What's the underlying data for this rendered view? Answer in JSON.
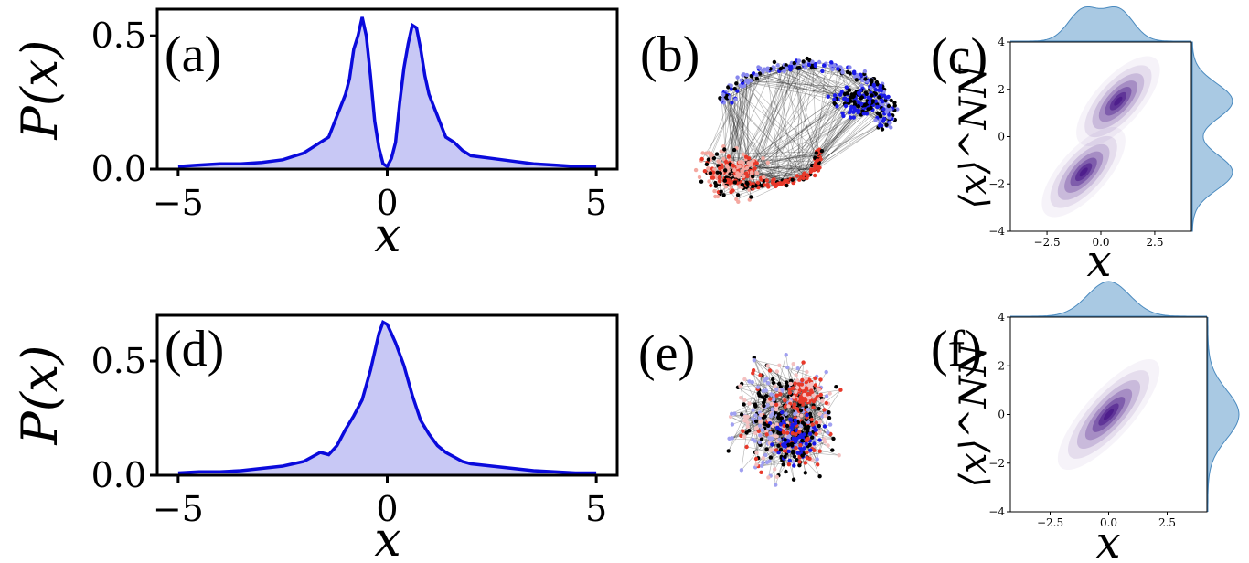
{
  "chart_data": [
    {
      "id": "a",
      "type": "area",
      "panel_label": "(a)",
      "xlabel": "x",
      "ylabel": "P(x)",
      "xlim": [
        -5.5,
        5.5
      ],
      "ylim": [
        0,
        0.6
      ],
      "xticks": [
        -5,
        0,
        5
      ],
      "xtick_labels": [
        "−5",
        "0",
        "5"
      ],
      "yticks": [
        0.0,
        0.5
      ],
      "ytick_labels": [
        "0.0",
        "0.5"
      ],
      "line_color": "#0a0adc",
      "fill_color": "#c8c8f5",
      "x": [
        -5.0,
        -4.5,
        -4.0,
        -3.5,
        -3.0,
        -2.5,
        -2.0,
        -1.8,
        -1.6,
        -1.4,
        -1.2,
        -1.0,
        -0.9,
        -0.8,
        -0.7,
        -0.6,
        -0.5,
        -0.4,
        -0.3,
        -0.2,
        -0.1,
        0.0,
        0.1,
        0.2,
        0.3,
        0.4,
        0.5,
        0.6,
        0.7,
        0.8,
        0.9,
        1.0,
        1.2,
        1.4,
        1.6,
        1.8,
        2.0,
        2.5,
        3.0,
        3.5,
        4.0,
        4.5,
        5.0
      ],
      "y": [
        0.01,
        0.015,
        0.02,
        0.02,
        0.025,
        0.035,
        0.06,
        0.08,
        0.1,
        0.12,
        0.2,
        0.28,
        0.34,
        0.45,
        0.5,
        0.57,
        0.5,
        0.35,
        0.18,
        0.08,
        0.02,
        0.01,
        0.04,
        0.1,
        0.25,
        0.38,
        0.47,
        0.54,
        0.53,
        0.45,
        0.35,
        0.28,
        0.2,
        0.12,
        0.1,
        0.07,
        0.05,
        0.04,
        0.03,
        0.02,
        0.015,
        0.01,
        0.01
      ]
    },
    {
      "id": "c",
      "type": "heatmap",
      "panel_label": "(c)",
      "xlabel": "x",
      "ylabel": "⟨x⟩^NN",
      "xlim": [
        -4.2,
        4.2
      ],
      "ylim": [
        -4,
        4
      ],
      "xticks": [
        -2.5,
        0.0,
        2.5
      ],
      "xtick_labels": [
        "−2.5",
        "0.0",
        "2.5"
      ],
      "yticks": [
        -4,
        -2,
        0,
        2,
        4
      ],
      "ytick_labels": [
        "−4",
        "−2",
        "0",
        "2",
        "4"
      ],
      "color": "#4b1a8a",
      "marginal_color": "#a9c9e3",
      "density_peaks": [
        {
          "x": -0.8,
          "y": -1.5
        },
        {
          "x": 0.8,
          "y": 1.5
        }
      ]
    },
    {
      "id": "d",
      "type": "area",
      "panel_label": "(d)",
      "xlabel": "x",
      "ylabel": "P(x)",
      "xlim": [
        -5.5,
        5.5
      ],
      "ylim": [
        0,
        0.7
      ],
      "xticks": [
        -5,
        0,
        5
      ],
      "xtick_labels": [
        "−5",
        "0",
        "5"
      ],
      "yticks": [
        0.0,
        0.5
      ],
      "ytick_labels": [
        "0.0",
        "0.5"
      ],
      "line_color": "#0a0adc",
      "fill_color": "#c8c8f5",
      "x": [
        -5.0,
        -4.5,
        -4.0,
        -3.5,
        -3.0,
        -2.5,
        -2.0,
        -1.8,
        -1.6,
        -1.4,
        -1.2,
        -1.0,
        -0.8,
        -0.6,
        -0.4,
        -0.2,
        -0.1,
        0.0,
        0.1,
        0.2,
        0.4,
        0.6,
        0.8,
        1.0,
        1.2,
        1.4,
        1.6,
        1.8,
        2.0,
        2.5,
        3.0,
        3.5,
        4.0,
        4.5,
        5.0
      ],
      "y": [
        0.01,
        0.015,
        0.015,
        0.02,
        0.03,
        0.04,
        0.06,
        0.08,
        0.1,
        0.09,
        0.13,
        0.2,
        0.26,
        0.33,
        0.46,
        0.62,
        0.67,
        0.66,
        0.62,
        0.58,
        0.48,
        0.35,
        0.24,
        0.18,
        0.13,
        0.1,
        0.08,
        0.06,
        0.05,
        0.04,
        0.03,
        0.02,
        0.015,
        0.01,
        0.01
      ]
    },
    {
      "id": "f",
      "type": "heatmap",
      "panel_label": "(f)",
      "xlabel": "x",
      "ylabel": "⟨x⟩^NN",
      "xlim": [
        -4.2,
        4.2
      ],
      "ylim": [
        -4,
        4
      ],
      "xticks": [
        -2.5,
        0.0,
        2.5
      ],
      "xtick_labels": [
        "−2.5",
        "0.0",
        "2.5"
      ],
      "yticks": [
        -4,
        -2,
        0,
        2,
        4
      ],
      "ytick_labels": [
        "−4",
        "−2",
        "0",
        "2",
        "4"
      ],
      "color": "#4b1a8a",
      "marginal_color": "#a9c9e3",
      "density_peaks": [
        {
          "x": 0.0,
          "y": 0.0
        }
      ]
    }
  ],
  "networks": [
    {
      "id": "b",
      "panel_label": "(b)",
      "colors": [
        "#e8392a",
        "#f4a8a0",
        "#1a1ae8",
        "#8888ee",
        "#000000"
      ]
    },
    {
      "id": "e",
      "panel_label": "(e)",
      "colors": [
        "#e8392a",
        "#f4c0c0",
        "#1a1ae8",
        "#a0a0f0",
        "#000000"
      ]
    }
  ],
  "labels": {
    "ylabel_top": "P(x)",
    "ylabel_bottom": "P(x)"
  }
}
